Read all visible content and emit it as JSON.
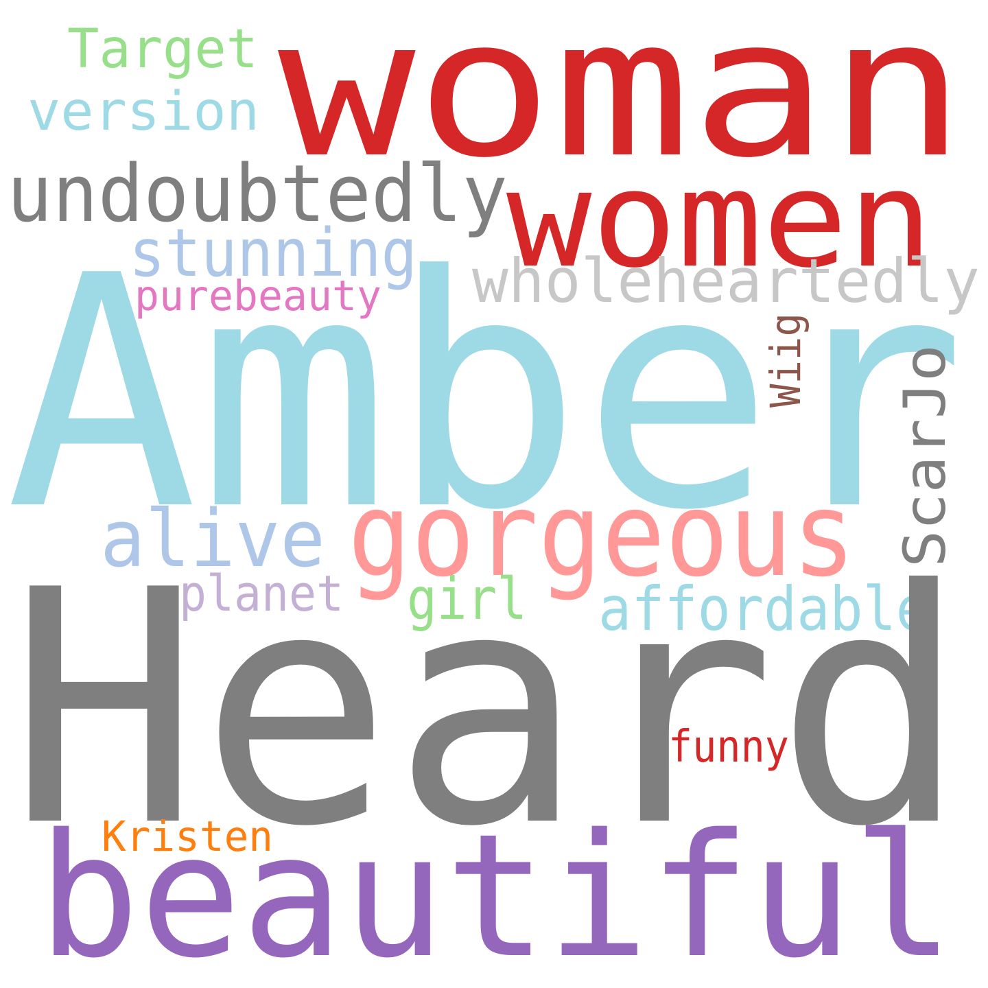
{
  "words": [
    {
      "id": "woman",
      "text": "woman",
      "color": "#d62728"
    },
    {
      "id": "target",
      "text": "Target",
      "color": "#98df8a"
    },
    {
      "id": "version",
      "text": "version",
      "color": "#9edae5"
    },
    {
      "id": "undoubtedly",
      "text": "undoubtedly",
      "color": "#7f7f7f"
    },
    {
      "id": "women",
      "text": "women",
      "color": "#d62728"
    },
    {
      "id": "stunning",
      "text": "stunning",
      "color": "#aec7e8"
    },
    {
      "id": "wholeheartedly",
      "text": "wholeheartedly",
      "color": "#c7c7c7"
    },
    {
      "id": "purebeauty",
      "text": "purebeauty",
      "color": "#e377c2"
    },
    {
      "id": "amber",
      "text": "Amber",
      "color": "#9edae5"
    },
    {
      "id": "wiig",
      "text": "Wiig",
      "color": "#8c564b"
    },
    {
      "id": "scarjo",
      "text": "ScarJo",
      "color": "#7f7f7f"
    },
    {
      "id": "alive",
      "text": "alive",
      "color": "#aec7e8"
    },
    {
      "id": "gorgeous",
      "text": "gorgeous",
      "color": "#ff9896"
    },
    {
      "id": "planet",
      "text": "planet",
      "color": "#c5b0d5"
    },
    {
      "id": "girl",
      "text": "girl",
      "color": "#98df8a"
    },
    {
      "id": "affordable",
      "text": "affordable",
      "color": "#9edae5"
    },
    {
      "id": "heard",
      "text": "Heard",
      "color": "#7f7f7f"
    },
    {
      "id": "funny",
      "text": "funny",
      "color": "#d62728"
    },
    {
      "id": "kristen",
      "text": "Kristen",
      "color": "#ff7f0e"
    },
    {
      "id": "beautiful",
      "text": "beautiful",
      "color": "#9467bd"
    }
  ]
}
